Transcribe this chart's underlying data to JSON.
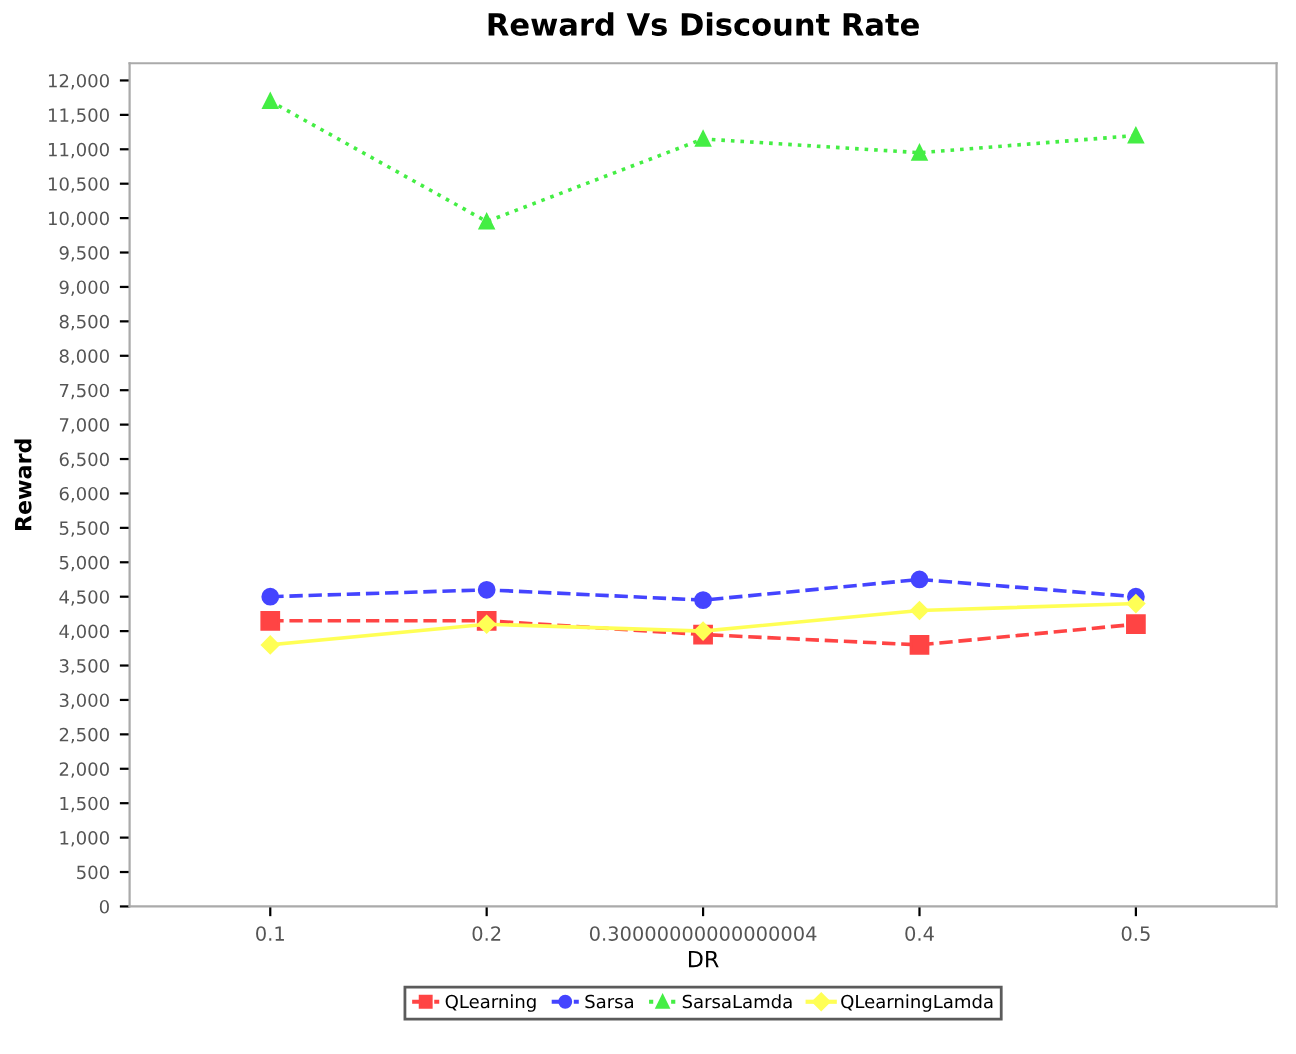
{
  "chart_data": {
    "type": "line",
    "title": "Reward Vs Discount Rate",
    "xlabel": "DR",
    "ylabel": "Reward",
    "categories": [
      "0.1",
      "0.2",
      "0.30000000000000004",
      "0.4",
      "0.5"
    ],
    "series": [
      {
        "name": "QLearning",
        "color": "#ff4444",
        "marker": "square",
        "line_style": "dashed",
        "values": [
          4150,
          4150,
          3950,
          3800,
          4100
        ]
      },
      {
        "name": "Sarsa",
        "color": "#4444ff",
        "marker": "circle",
        "line_style": "dashed",
        "values": [
          4500,
          4600,
          4450,
          4750,
          4500
        ]
      },
      {
        "name": "SarsaLamda",
        "color": "#44ee44",
        "marker": "triangle",
        "line_style": "dotted",
        "values": [
          11700,
          9950,
          11150,
          10950,
          11200
        ]
      },
      {
        "name": "QLearningLamda",
        "color": "#ffff55",
        "marker": "diamond",
        "line_style": "solid",
        "values": [
          3800,
          4100,
          4000,
          4300,
          4400
        ]
      }
    ],
    "ylim": [
      0,
      12250
    ],
    "yticks": [
      0,
      {
        "value": 500,
        "label": "500"
      },
      {
        "value": 1000,
        "label": "1,000"
      },
      {
        "value": 1500,
        "label": "1,500"
      },
      {
        "value": 2000,
        "label": "2,000"
      },
      {
        "value": 2500,
        "label": "2,500"
      },
      {
        "value": 3000,
        "label": "3,000"
      },
      {
        "value": 3500,
        "label": "3,500"
      },
      {
        "value": 4000,
        "label": "4,000"
      },
      {
        "value": 4500,
        "label": "4,500"
      },
      {
        "value": 5000,
        "label": "5,000"
      },
      {
        "value": 5500,
        "label": "5,500"
      },
      {
        "value": 6000,
        "label": "6,000"
      },
      {
        "value": 6500,
        "label": "6,500"
      },
      {
        "value": 7000,
        "label": "7,000"
      },
      {
        "value": 7500,
        "label": "7,500"
      },
      {
        "value": 8000,
        "label": "8,000"
      },
      {
        "value": 8500,
        "label": "8,500"
      },
      {
        "value": 9000,
        "label": "9,000"
      },
      {
        "value": 9500,
        "label": "9,500"
      },
      {
        "value": 10000,
        "label": "10,000"
      },
      {
        "value": 10500,
        "label": "10,500"
      },
      {
        "value": 11000,
        "label": "11,000"
      },
      {
        "value": 11500,
        "label": "11,500"
      },
      {
        "value": 12000,
        "label": "12,000"
      }
    ],
    "grid": false,
    "legend": "bottom"
  }
}
